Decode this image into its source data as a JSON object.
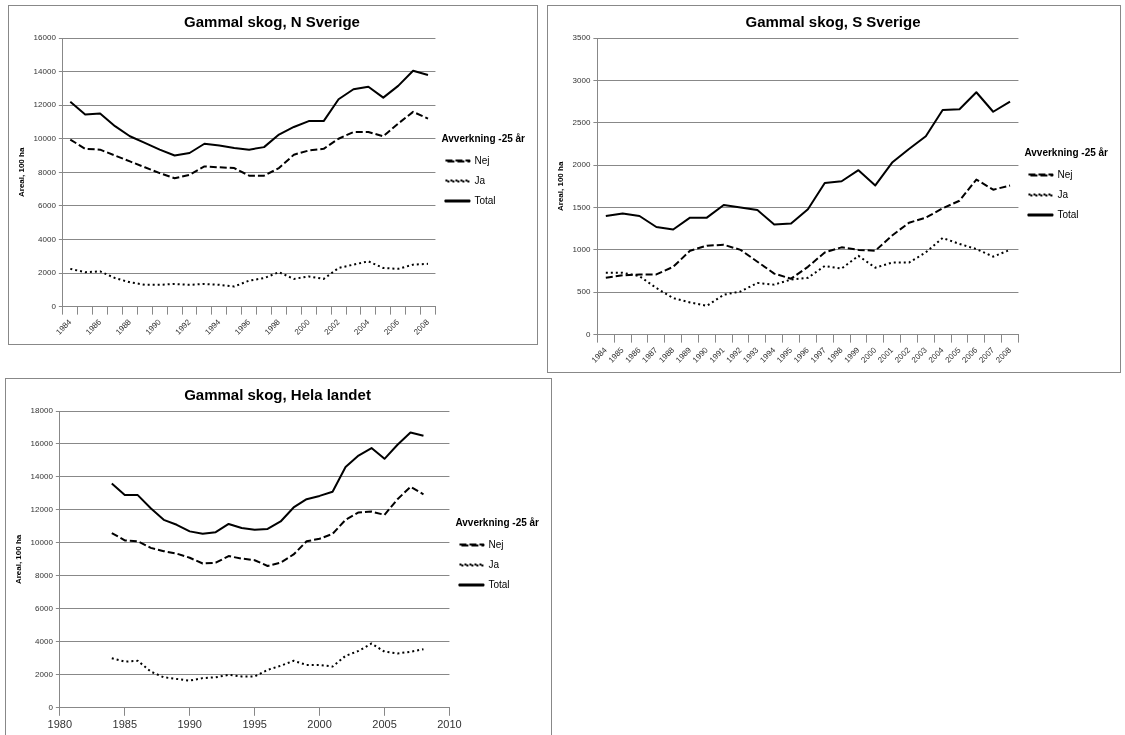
{
  "chart_data": [
    {
      "type": "line",
      "title": "Gammal skog, N Sverige",
      "ylabel": "Areal, 100 ha",
      "legend_title": "Avverkning -25 år",
      "legend": "right",
      "grid": "y",
      "marker": "none",
      "categories": [
        "1984",
        null,
        "1986",
        null,
        "1988",
        null,
        "1990",
        null,
        "1992",
        null,
        "1994",
        null,
        "1996",
        null,
        "1998",
        null,
        "2000",
        null,
        "2002",
        null,
        "2004",
        null,
        "2006",
        null,
        "2008"
      ],
      "ylim": [
        0,
        16000
      ],
      "yticks": [
        0,
        2000,
        4000,
        6000,
        8000,
        10000,
        12000,
        14000,
        16000
      ],
      "series": [
        {
          "name": "Nej",
          "color": "#000000",
          "line_style": "dashed",
          "values": [
            9950,
            9400,
            9350,
            9000,
            8650,
            8300,
            7950,
            7650,
            7850,
            8350,
            8300,
            8250,
            7800,
            7800,
            8250,
            9050,
            9300,
            9400,
            10000,
            10400,
            10400,
            10150,
            10900,
            11600,
            11200
          ]
        },
        {
          "name": "Ja",
          "color": "#000000",
          "line_style": "dotted",
          "values": [
            2250,
            2050,
            2100,
            1700,
            1450,
            1300,
            1300,
            1350,
            1300,
            1350,
            1300,
            1200,
            1550,
            1700,
            2050,
            1650,
            1800,
            1650,
            2300,
            2500,
            2700,
            2300,
            2250,
            2500,
            2550
          ]
        },
        {
          "name": "Total",
          "color": "#000000",
          "line_style": "solid",
          "values": [
            12200,
            11450,
            11500,
            10750,
            10150,
            9750,
            9350,
            9000,
            9150,
            9700,
            9600,
            9450,
            9350,
            9500,
            10250,
            10700,
            11050,
            11050,
            12350,
            12950,
            13100,
            12450,
            13150,
            14050,
            13800
          ]
        }
      ]
    },
    {
      "type": "line",
      "title": "Gammal skog, S Sverige",
      "ylabel": "Areal, 100 ha",
      "legend_title": "Avverkning -25 år",
      "legend": "right",
      "grid": "y",
      "marker": "none",
      "categories": [
        "1984",
        "1985",
        "1986",
        "1987",
        "1988",
        "1989",
        "1990",
        "1991",
        "1992",
        "1993",
        "1994",
        "1995",
        "1996",
        "1997",
        "1998",
        "1999",
        "2000",
        "2001",
        "2002",
        "2003",
        "2004",
        "2005",
        "2006",
        "2007",
        "2008"
      ],
      "ylim": [
        0,
        3500
      ],
      "yticks": [
        0,
        500,
        1000,
        1500,
        2000,
        2500,
        3000,
        3500
      ],
      "series": [
        {
          "name": "Nej",
          "color": "#000000",
          "line_style": "dashed",
          "values": [
            670,
            700,
            710,
            710,
            800,
            990,
            1050,
            1060,
            1000,
            860,
            720,
            660,
            800,
            970,
            1030,
            1000,
            990,
            1170,
            1320,
            1380,
            1490,
            1580,
            1830,
            1710,
            1760
          ]
        },
        {
          "name": "Ja",
          "color": "#000000",
          "line_style": "dotted",
          "values": [
            730,
            730,
            690,
            550,
            430,
            380,
            340,
            470,
            510,
            610,
            590,
            650,
            670,
            810,
            780,
            930,
            790,
            850,
            850,
            970,
            1140,
            1070,
            1010,
            920,
            1000
          ]
        },
        {
          "name": "Total",
          "color": "#000000",
          "line_style": "solid",
          "values": [
            1400,
            1430,
            1400,
            1270,
            1240,
            1380,
            1380,
            1530,
            1500,
            1470,
            1300,
            1310,
            1480,
            1790,
            1810,
            1940,
            1760,
            2030,
            2190,
            2340,
            2650,
            2660,
            2860,
            2630,
            2750
          ]
        }
      ]
    },
    {
      "type": "line",
      "title": "Gammal skog, Hela landet",
      "ylabel": "Areal, 100 ha",
      "legend_title": "Avverkning -25 år",
      "legend": "right",
      "grid": "y",
      "marker": "none",
      "x": [
        1984,
        1985,
        1986,
        1987,
        1988,
        1989,
        1990,
        1991,
        1992,
        1993,
        1994,
        1995,
        1996,
        1997,
        1998,
        1999,
        2000,
        2001,
        2002,
        2003,
        2004,
        2005,
        2006,
        2007,
        2008
      ],
      "xlim": [
        1980,
        2010
      ],
      "xticks": [
        1980,
        1985,
        1990,
        1995,
        2000,
        2005,
        2010
      ],
      "ylim": [
        0,
        18000
      ],
      "yticks": [
        0,
        2000,
        4000,
        6000,
        8000,
        10000,
        12000,
        14000,
        16000,
        18000
      ],
      "series": [
        {
          "name": "Nej",
          "color": "#000000",
          "line_style": "dashed",
          "values": [
            10600,
            10150,
            10100,
            9700,
            9500,
            9350,
            9100,
            8750,
            8800,
            9200,
            9050,
            8950,
            8600,
            8800,
            9300,
            10100,
            10250,
            10550,
            11400,
            11850,
            11900,
            11700,
            12650,
            13400,
            12950
          ]
        },
        {
          "name": "Ja",
          "color": "#000000",
          "line_style": "dotted",
          "values": [
            3000,
            2800,
            2850,
            2200,
            1850,
            1750,
            1650,
            1800,
            1850,
            2000,
            1900,
            1900,
            2300,
            2550,
            2850,
            2600,
            2600,
            2500,
            3150,
            3450,
            3900,
            3400,
            3300,
            3400,
            3550
          ]
        },
        {
          "name": "Total",
          "color": "#000000",
          "line_style": "solid",
          "values": [
            13600,
            12900,
            12900,
            12100,
            11400,
            11100,
            10700,
            10550,
            10650,
            11150,
            10900,
            10800,
            10850,
            11300,
            12150,
            12650,
            12850,
            13100,
            14600,
            15300,
            15750,
            15100,
            15950,
            16700,
            16500
          ]
        }
      ]
    }
  ]
}
